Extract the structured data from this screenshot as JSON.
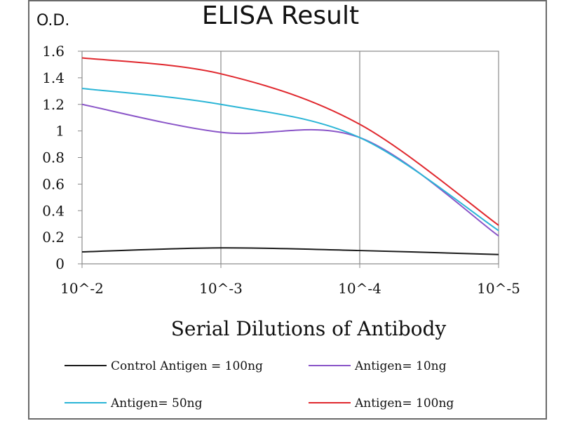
{
  "chart_data": {
    "type": "line",
    "title": "ELISA Result",
    "ylabel": "O.D.",
    "xlabel": "Serial Dilutions  of Antibody",
    "categories": [
      "10^-2",
      "10^-3",
      "10^-4",
      "10^-5"
    ],
    "x_tick_labels": [
      "10^-2",
      "10^-3",
      "10^-4",
      "10^-5"
    ],
    "y_ticks": [
      "0",
      "0.2",
      "0.4",
      "0.6",
      "0.8",
      "1",
      "1.2",
      "1.4",
      "1.6"
    ],
    "ylim": [
      0,
      1.6
    ],
    "grid": "vertical",
    "legend_position": "bottom",
    "series": [
      {
        "name": "Control Antigen = 100ng",
        "color": "#1a1a1a",
        "values": [
          0.09,
          0.12,
          0.1,
          0.07
        ]
      },
      {
        "name": "Antigen= 10ng",
        "color": "#8a55c8",
        "values": [
          1.2,
          0.99,
          0.95,
          0.21
        ]
      },
      {
        "name": "Antigen= 50ng",
        "color": "#2ab5d6",
        "values": [
          1.32,
          1.2,
          0.95,
          0.25
        ]
      },
      {
        "name": "Antigen= 100ng",
        "color": "#e0282e",
        "values": [
          1.55,
          1.43,
          1.05,
          0.29
        ]
      }
    ]
  }
}
